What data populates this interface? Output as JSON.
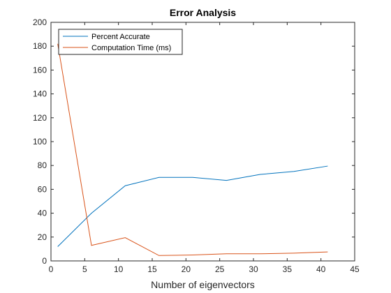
{
  "chart_data": {
    "type": "line",
    "title": "Error Analysis",
    "xlabel": "Number of eigenvectors",
    "ylabel": "",
    "xlim": [
      0,
      45
    ],
    "ylim": [
      0,
      200
    ],
    "xticks": [
      0,
      5,
      10,
      15,
      20,
      25,
      30,
      35,
      40,
      45
    ],
    "yticks": [
      0,
      20,
      40,
      60,
      80,
      100,
      120,
      140,
      160,
      180,
      200
    ],
    "grid": false,
    "legend_position": "top-left",
    "x": [
      1,
      6,
      11,
      16,
      21,
      26,
      31,
      36,
      41
    ],
    "series": [
      {
        "name": "Percent Accurate",
        "color": "#0072BD",
        "values": [
          12,
          40,
          63,
          70,
          70,
          67.5,
          72.5,
          75,
          79.5
        ]
      },
      {
        "name": "Computation Time (ms)",
        "color": "#D95319",
        "values": [
          182,
          13,
          19.5,
          4.5,
          5,
          6,
          6,
          6.5,
          7.5
        ]
      }
    ]
  }
}
